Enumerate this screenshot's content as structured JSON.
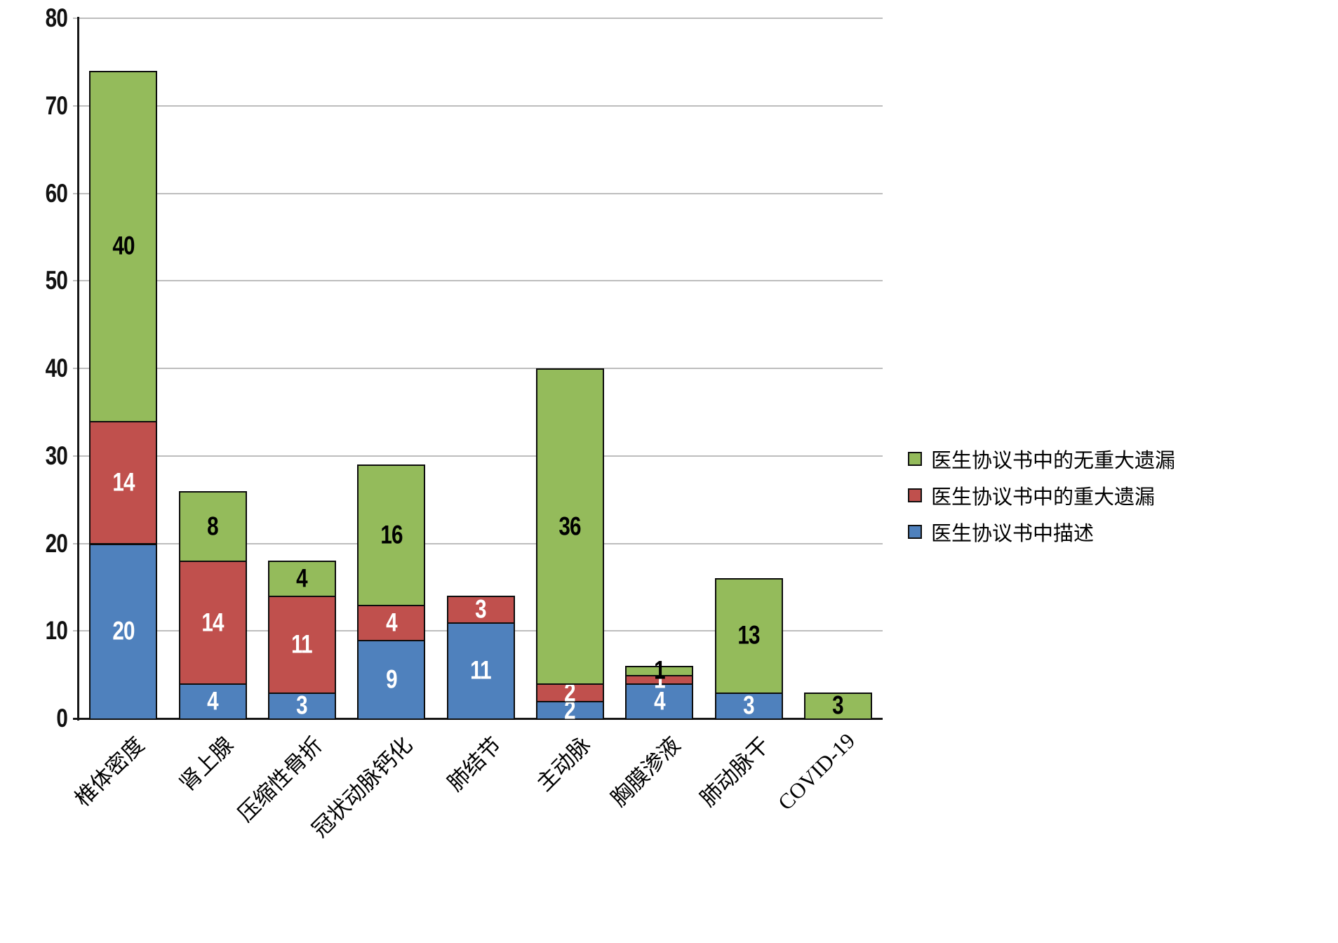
{
  "chart_data": {
    "type": "bar",
    "stacked": true,
    "title": "",
    "xlabel": "",
    "ylabel": "",
    "grid": true,
    "categories": [
      "椎体密度",
      "肾上腺",
      "压缩性骨折",
      "冠状动脉钙化",
      "肺结节",
      "主动脉",
      "胸膜渗液",
      "肺动脉干",
      "COVID-19"
    ],
    "series": [
      {
        "name": "医生协议书中描述",
        "color": "#4F81BD",
        "label_color": "#FFFFFF",
        "values": [
          20,
          4,
          3,
          9,
          11,
          2,
          4,
          3,
          0
        ]
      },
      {
        "name": "医生协议书中的重大遗漏",
        "color": "#C0504D",
        "label_color": "#FFFFFF",
        "values": [
          14,
          14,
          11,
          4,
          3,
          2,
          1,
          0,
          0
        ]
      },
      {
        "name": "医生协议书中的无重大遗漏",
        "color": "#94BB5B",
        "label_color": "#000000",
        "values": [
          40,
          8,
          4,
          16,
          0,
          36,
          1,
          13,
          3
        ]
      }
    ],
    "stack_totals": [
      74,
      26,
      18,
      29,
      14,
      40,
      6,
      16,
      3
    ],
    "y_axis": {
      "min": 0,
      "max": 80,
      "step": 10,
      "tick_labels": [
        "0",
        "10",
        "20",
        "30",
        "40",
        "50",
        "60",
        "70",
        "80"
      ]
    },
    "legend": {
      "position": "right",
      "order_top_to_bottom": [
        2,
        1,
        0
      ]
    }
  }
}
